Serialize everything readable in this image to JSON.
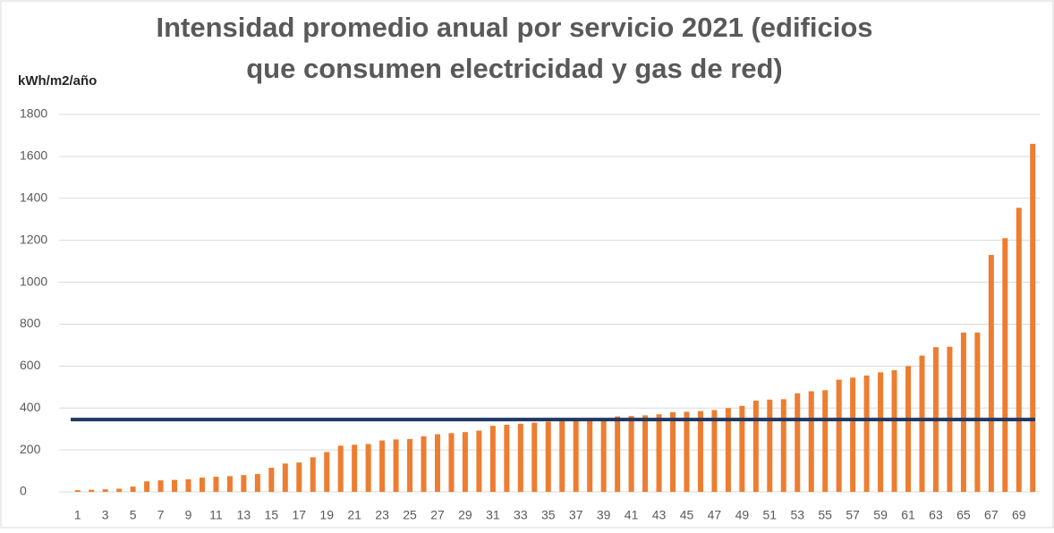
{
  "chart_data": {
    "type": "bar",
    "title": [
      "Intensidad promedio anual por servicio 2021 (edificios",
      "que consumen electricidad y gas de red)"
    ],
    "y_label": "kWh/m2/año",
    "categories": [
      "1",
      null,
      "3",
      null,
      "5",
      null,
      "7",
      null,
      "9",
      null,
      "11",
      null,
      "13",
      null,
      "15",
      null,
      "17",
      null,
      "19",
      null,
      "21",
      null,
      "23",
      null,
      "25",
      null,
      "27",
      null,
      "29",
      null,
      "31",
      null,
      "33",
      null,
      "35",
      null,
      "37",
      null,
      "39",
      null,
      "41",
      null,
      "43",
      null,
      "45",
      null,
      "47",
      null,
      "49",
      null,
      "51",
      null,
      "53",
      null,
      "55",
      null,
      "57",
      null,
      "59",
      null,
      "61",
      null,
      "63",
      null,
      "65",
      null,
      "67",
      null,
      "69",
      null
    ],
    "values": [
      8,
      10,
      12,
      15,
      25,
      50,
      55,
      57,
      60,
      68,
      72,
      75,
      80,
      85,
      115,
      135,
      140,
      165,
      190,
      220,
      225,
      228,
      245,
      250,
      252,
      265,
      275,
      280,
      285,
      292,
      315,
      320,
      325,
      330,
      335,
      338,
      340,
      345,
      350,
      360,
      362,
      365,
      370,
      380,
      382,
      385,
      390,
      400,
      410,
      435,
      440,
      442,
      470,
      480,
      485,
      535,
      545,
      555,
      570,
      580,
      600,
      650,
      690,
      692,
      760,
      760,
      1130,
      1210,
      1355,
      1660
    ],
    "color": "#ed7d31",
    "reference_line": 345,
    "reference_color": "#203864",
    "ylim": [
      0,
      1800
    ],
    "yticks": [
      0,
      200,
      400,
      600,
      800,
      1000,
      1200,
      1400,
      1600,
      1800
    ],
    "grid": true
  }
}
